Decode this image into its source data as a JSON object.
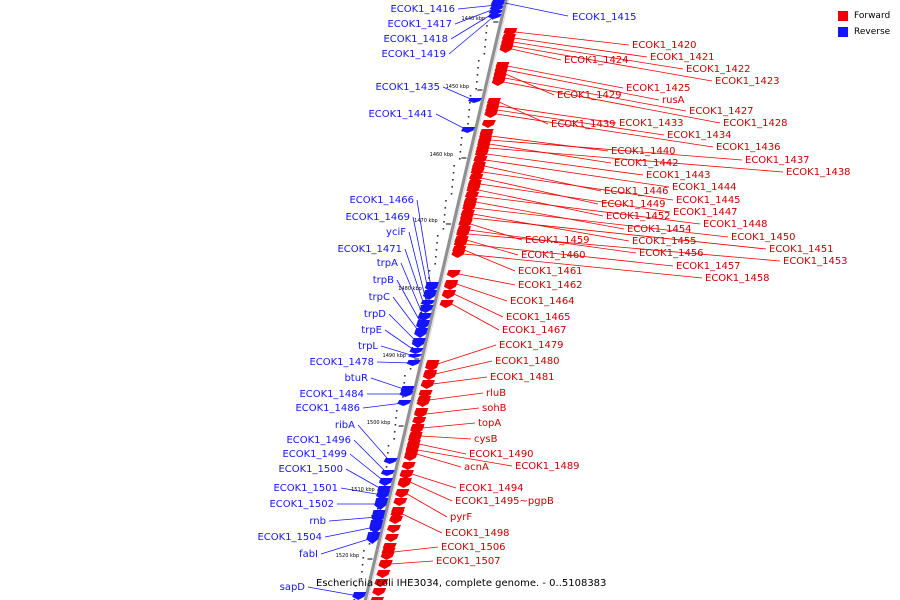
{
  "colors": {
    "forward": "#ee0000",
    "reverse": "#1414ff",
    "backbone": "#808080",
    "leader_forward": "#ee0000",
    "leader_reverse": "#1414ff"
  },
  "legend": [
    {
      "label": "Forward",
      "color": "#ee0000"
    },
    {
      "label": "Reverse",
      "color": "#1414ff"
    }
  ],
  "footer": "Escherichia coli IHE3034, complete genome. - 0..5108383",
  "ticks": [
    "1440 kbp",
    "1450 kbp",
    "1460 kbp",
    "1470 kbp",
    "1480 kbp",
    "1490 kbp",
    "1500 kbp",
    "1510 kbp",
    "1520 kbp"
  ],
  "reverse_genes": [
    "ECOK1_1416",
    "ECOK1_1417",
    "ECOK1_1418",
    "ECOK1_1419",
    "ECOK1_1435",
    "ECOK1_1441",
    "ECOK1_1466",
    "ECOK1_1469",
    "yciF",
    "ECOK1_1471",
    "trpA",
    "trpB",
    "trpC",
    "trpD",
    "trpE",
    "trpL",
    "ECOK1_1478",
    "btuR",
    "ECOK1_1484",
    "ECOK1_1486",
    "ribA",
    "ECOK1_1496",
    "ECOK1_1499",
    "ECOK1_1500",
    "ECOK1_1501",
    "ECOK1_1502",
    "rnb",
    "ECOK1_1504",
    "fabI",
    "sapD",
    "ECOK1_1415"
  ],
  "forward_genes": [
    "ECOK1_1420",
    "ECOK1_1421",
    "ECOK1_1422",
    "ECOK1_1423",
    "ECOK1_1424",
    "ECOK1_1425",
    "rusA",
    "ECOK1_1429",
    "ECOK1_1427",
    "ECOK1_1428",
    "ECOK1_1439",
    "ECOK1_1433",
    "ECOK1_1434",
    "ECOK1_1436",
    "ECOK1_1440",
    "ECOK1_1437",
    "ECOK1_1442",
    "ECOK1_1438",
    "ECOK1_1443",
    "ECOK1_1444",
    "ECOK1_1446",
    "ECOK1_1445",
    "ECOK1_1449",
    "ECOK1_1447",
    "ECOK1_1452",
    "ECOK1_1448",
    "ECOK1_1454",
    "ECOK1_1450",
    "ECOK1_1455",
    "ECOK1_1451",
    "ECOK1_1459",
    "ECOK1_1456",
    "ECOK1_1453",
    "ECOK1_1460",
    "ECOK1_1457",
    "ECOK1_1461",
    "ECOK1_1458",
    "ECOK1_1462",
    "ECOK1_1464",
    "ECOK1_1465",
    "ECOK1_1467",
    "ECOK1_1479",
    "ECOK1_1480",
    "ECOK1_1481",
    "rluB",
    "sohB",
    "topA",
    "cysB",
    "ECOK1_1490",
    "ECOK1_1489",
    "acnA",
    "ECOK1_1494",
    "ECOK1_1495~pgpB",
    "pyrF",
    "ECOK1_1498",
    "ECOK1_1506",
    "ECOK1_1507"
  ]
}
